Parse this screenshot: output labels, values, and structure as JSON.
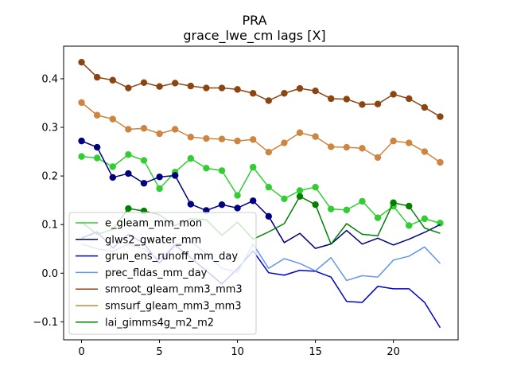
{
  "chart_data": {
    "type": "line",
    "title": "PRA",
    "subtitle": "grace_lwe_cm lags [X]",
    "xlabel": "",
    "ylabel": "",
    "xlim": [
      -1.15,
      24.15
    ],
    "ylim": [
      -0.137,
      0.467
    ],
    "xticks": [
      0,
      5,
      10,
      15,
      20
    ],
    "yticks": [
      -0.1,
      0.0,
      0.1,
      0.2,
      0.3,
      0.4
    ],
    "ytick_labels": [
      "−0.1",
      "0.0",
      "0.1",
      "0.2",
      "0.3",
      "0.4"
    ],
    "x": [
      0,
      1,
      2,
      3,
      4,
      5,
      6,
      7,
      8,
      9,
      10,
      11,
      12,
      13,
      14,
      15,
      16,
      17,
      18,
      19,
      20,
      21,
      22,
      23
    ],
    "legend_position": "lower-left",
    "series": [
      {
        "name": "e_gleam_mm_mon",
        "color": "#32cd32",
        "values": [
          0.24,
          0.237,
          0.219,
          0.244,
          0.232,
          0.174,
          0.208,
          0.236,
          0.216,
          0.211,
          0.16,
          0.218,
          0.177,
          0.153,
          0.17,
          0.177,
          0.132,
          0.13,
          0.148,
          0.114,
          0.138,
          0.098,
          0.112,
          0.103
        ],
        "markers": [
          0,
          1,
          2,
          3,
          4,
          5,
          6,
          7,
          8,
          9,
          10,
          11,
          12,
          13,
          14,
          15,
          16,
          17,
          18,
          19,
          20,
          21,
          22,
          23
        ]
      },
      {
        "name": "glws2_gwater_mm",
        "color": "#000080",
        "values": [
          0.272,
          0.259,
          0.197,
          0.205,
          0.185,
          0.198,
          0.201,
          0.142,
          0.129,
          0.141,
          0.134,
          0.149,
          0.117,
          0.063,
          0.082,
          0.051,
          0.06,
          0.088,
          0.06,
          0.072,
          0.058,
          0.07,
          0.084,
          0.1
        ],
        "markers": [
          0,
          1,
          2,
          3,
          4,
          5,
          6,
          7,
          8,
          9,
          10,
          11,
          12
        ]
      },
      {
        "name": "grun_ens_runoff_mm_day",
        "color": "#0000cd",
        "values": [
          0.072,
          0.085,
          0.052,
          0.08,
          0.061,
          0.021,
          0.058,
          0.032,
          0.005,
          -0.022,
          0.009,
          0.046,
          0.001,
          -0.004,
          0.006,
          0.004,
          -0.008,
          -0.058,
          -0.06,
          -0.027,
          -0.032,
          -0.032,
          -0.06,
          -0.112
        ],
        "markers": []
      },
      {
        "name": "prec_fldas_mm_day",
        "color": "#6495ed",
        "values": [
          0.06,
          0.05,
          0.045,
          0.06,
          0.05,
          0.028,
          0.06,
          0.065,
          0.04,
          0.01,
          0.002,
          0.06,
          0.01,
          0.03,
          0.02,
          0.005,
          0.032,
          -0.015,
          -0.005,
          -0.008,
          0.027,
          0.035,
          0.054,
          0.02
        ],
        "markers": []
      },
      {
        "name": "smroot_gleam_mm3_mm3",
        "color": "#8b4513",
        "values": [
          0.434,
          0.403,
          0.397,
          0.381,
          0.392,
          0.384,
          0.391,
          0.385,
          0.381,
          0.381,
          0.378,
          0.37,
          0.355,
          0.37,
          0.38,
          0.375,
          0.359,
          0.358,
          0.347,
          0.348,
          0.368,
          0.359,
          0.341,
          0.322
        ],
        "markers": [
          0,
          1,
          2,
          3,
          4,
          5,
          6,
          7,
          8,
          9,
          10,
          11,
          12,
          13,
          14,
          15,
          16,
          17,
          18,
          19,
          20,
          21,
          22,
          23
        ]
      },
      {
        "name": "smsurf_gleam_mm3_mm3",
        "color": "#cd853f",
        "values": [
          0.351,
          0.325,
          0.317,
          0.296,
          0.298,
          0.287,
          0.296,
          0.28,
          0.277,
          0.276,
          0.272,
          0.275,
          0.249,
          0.268,
          0.289,
          0.281,
          0.26,
          0.259,
          0.257,
          0.238,
          0.272,
          0.268,
          0.25,
          0.228
        ],
        "markers": [
          0,
          1,
          2,
          3,
          4,
          5,
          6,
          7,
          8,
          9,
          10,
          11,
          12,
          13,
          14,
          15,
          16,
          17,
          18,
          19,
          20,
          21,
          22,
          23
        ]
      },
      {
        "name": "lai_gimms4g_m2_m2",
        "color": "#008000",
        "values": [
          0.105,
          0.08,
          0.09,
          0.133,
          0.128,
          0.12,
          0.098,
          0.112,
          0.11,
          0.078,
          0.105,
          0.07,
          0.085,
          0.102,
          0.158,
          0.141,
          0.06,
          0.102,
          0.08,
          0.077,
          0.145,
          0.138,
          0.093,
          0.082
        ],
        "markers": [
          3,
          4,
          14,
          15,
          20,
          21
        ]
      }
    ]
  }
}
